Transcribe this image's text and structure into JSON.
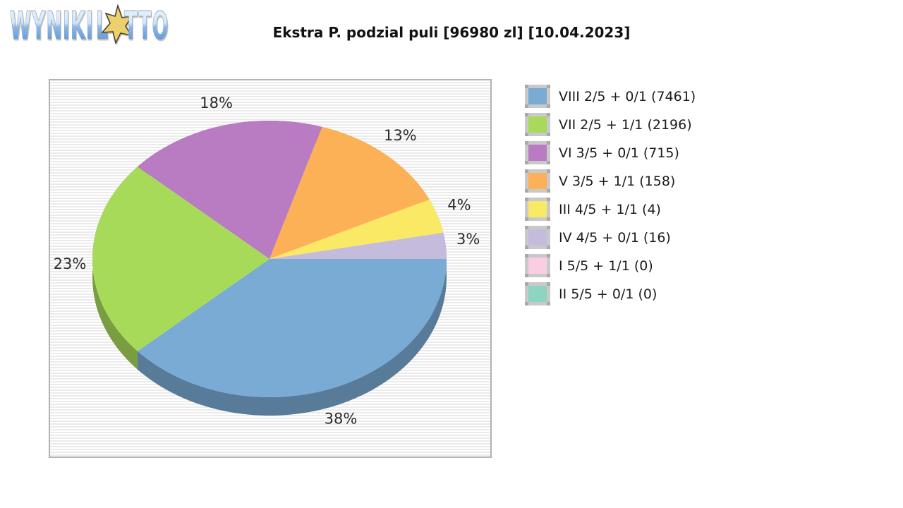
{
  "logo": {
    "word1": "WYNIKI",
    "word2_l": "L",
    "word2_rest": "TTO",
    "full_name": "WYNIKI LOTTO",
    "star_color": "#ecd06c"
  },
  "title": "Ekstra P. podzial puli [96980 zl] [10.04.2023]",
  "chart_data": {
    "type": "pie",
    "title": "Ekstra P. podzial puli [96980 zl] [10.04.2023]",
    "pool_amount": "96980 zl",
    "date": "10.04.2023",
    "legend_position": "right",
    "style": "3d-pie",
    "start_angle_deg": 0,
    "direction": "clockwise",
    "slices": [
      {
        "tier": "VIII",
        "combo": "2/5 + 0/1",
        "count": 7461,
        "label": "VIII 2/5 + 0/1 (7461)",
        "pct": 38,
        "pct_label": "38%",
        "color": "#79abd4"
      },
      {
        "tier": "VII",
        "combo": "2/5 + 1/1",
        "count": 2196,
        "label": "VII 2/5 + 1/1 (2196)",
        "pct": 23,
        "pct_label": "23%",
        "color": "#a8da5a"
      },
      {
        "tier": "VI",
        "combo": "3/5 + 0/1",
        "count": 715,
        "label": "VI 3/5 + 0/1 (715)",
        "pct": 18,
        "pct_label": "18%",
        "color": "#b97bc2"
      },
      {
        "tier": "V",
        "combo": "3/5 + 1/1",
        "count": 158,
        "label": "V 3/5 + 1/1 (158)",
        "pct": 13,
        "pct_label": "13%",
        "color": "#fdb156"
      },
      {
        "tier": "III",
        "combo": "4/5 + 1/1",
        "count": 4,
        "label": "III 4/5 + 1/1 (4)",
        "pct": 4,
        "pct_label": "4%",
        "color": "#f9e965"
      },
      {
        "tier": "IV",
        "combo": "4/5 + 0/1",
        "count": 16,
        "label": "IV 4/5 + 0/1 (16)",
        "pct": 3,
        "pct_label": "3%",
        "color": "#c4bbdd"
      },
      {
        "tier": "I",
        "combo": "5/5 + 1/1",
        "count": 0,
        "label": "I 5/5 + 1/1 (0)",
        "pct": 0,
        "pct_label": "",
        "color": "#facde5"
      },
      {
        "tier": "II",
        "combo": "5/5 + 0/1",
        "count": 0,
        "label": "II 5/5 + 0/1 (0)",
        "pct": 0,
        "pct_label": "",
        "color": "#8dd5be"
      }
    ]
  }
}
